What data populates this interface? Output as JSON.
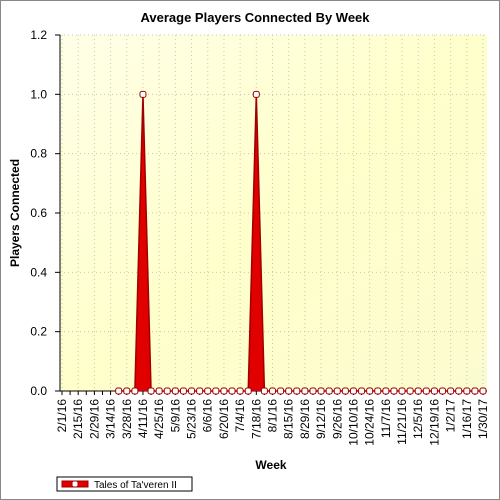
{
  "chart_data": {
    "type": "area",
    "title": "Average Players Connected By Week",
    "x_label": "Week",
    "y_label": "Players Connected",
    "categories": [
      "2/1/16",
      null,
      "2/15/16",
      null,
      "2/29/16",
      null,
      "3/14/16",
      null,
      "3/28/16",
      null,
      "4/11/16",
      null,
      "4/25/16",
      null,
      "5/9/16",
      null,
      "5/23/16",
      null,
      "6/6/16",
      null,
      "6/20/16",
      null,
      "7/4/16",
      null,
      "7/18/16",
      null,
      "8/1/16",
      null,
      "8/15/16",
      null,
      "8/29/16",
      null,
      "9/12/16",
      null,
      "9/26/16",
      null,
      "10/10/16",
      null,
      "10/24/16",
      null,
      "11/7/16",
      null,
      "11/21/16",
      null,
      "12/5/16",
      null,
      "12/19/16",
      null,
      "1/2/17",
      null,
      "1/16/17",
      null,
      "1/30/17"
    ],
    "series": [
      {
        "name": "Tales of Ta'veren II",
        "color": "#e00000",
        "values": [
          null,
          null,
          null,
          null,
          null,
          null,
          null,
          0,
          0,
          0,
          1,
          0,
          0,
          0,
          0,
          0,
          0,
          0,
          0,
          0,
          0,
          0,
          0,
          0,
          1,
          0,
          0,
          0,
          0,
          0,
          0,
          0,
          0,
          0,
          0,
          0,
          0,
          0,
          0,
          0,
          0,
          0,
          0,
          0,
          0,
          0,
          0,
          0,
          0,
          0,
          0,
          0,
          0
        ]
      }
    ],
    "ylim": [
      0,
      1.2
    ],
    "yticks": [
      {
        "value": 0,
        "label": "0.0"
      },
      0.2,
      0.4,
      0.6,
      0.8,
      {
        "value": 1,
        "label": "1.0"
      },
      1.2
    ],
    "grid": true
  }
}
